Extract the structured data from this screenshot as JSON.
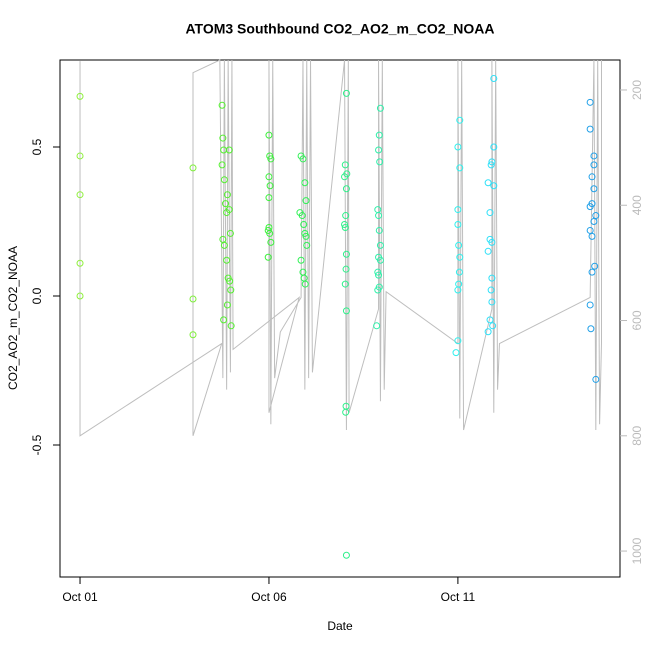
{
  "chart_data": {
    "type": "scatter",
    "title": "ATOM3 Southbound CO2_AO2_m_CO2_NOAA",
    "xlabel": "Date",
    "ylabel": "CO2_AO2_m_CO2_NOAA",
    "xlim": [
      -0.53,
      14.29
    ],
    "xticks": [
      {
        "value": 0,
        "label": "Oct 01"
      },
      {
        "value": 5,
        "label": "Oct 06"
      },
      {
        "value": 10,
        "label": "Oct 11"
      }
    ],
    "ylim": [
      -0.943,
      0.792
    ],
    "yticks": [
      -0.5,
      {
        "value": 0,
        "label": "0.0"
      },
      0.5
    ],
    "y2lim": [
      1045,
      148
    ],
    "y2ticks": [
      200,
      400,
      600,
      800,
      1000
    ],
    "series": [
      {
        "color": "#8ff03c",
        "x": [
          0,
          0,
          0,
          0,
          0
        ],
        "values": [
          0.67,
          0.47,
          0.34,
          0.11,
          0.0
        ]
      },
      {
        "color": "#7ff03a",
        "x": [
          2.99,
          2.99,
          2.99
        ],
        "values": [
          0.43,
          -0.01,
          -0.13
        ]
      },
      {
        "color": "#55f030",
        "x": [
          3.76,
          3.78,
          3.8,
          3.76,
          3.82,
          3.9,
          3.85,
          3.95,
          3.98,
          3.78,
          3.82,
          3.88,
          3.92,
          3.96,
          3.99,
          3.9,
          3.8,
          4.0,
          3.95,
          3.88
        ],
        "values": [
          0.64,
          0.53,
          0.49,
          0.44,
          0.39,
          0.34,
          0.31,
          0.29,
          0.21,
          0.19,
          0.17,
          0.12,
          0.06,
          0.05,
          0.02,
          -0.03,
          -0.08,
          -0.1,
          0.49,
          0.28
        ]
      },
      {
        "color": "#3cf03c",
        "x": [
          5.0,
          5.02,
          5.05,
          5.0,
          5.03,
          5.0,
          5.0,
          4.98,
          5.02,
          5.05,
          4.98
        ],
        "values": [
          0.54,
          0.47,
          0.46,
          0.4,
          0.37,
          0.33,
          0.23,
          0.22,
          0.21,
          0.18,
          0.13
        ]
      },
      {
        "color": "#30f055",
        "x": [
          5.85,
          5.9,
          5.95,
          5.98,
          5.82,
          5.88,
          5.92,
          5.95,
          5.98,
          6.0,
          5.85,
          5.9,
          5.93,
          5.96
        ],
        "values": [
          0.47,
          0.46,
          0.38,
          0.32,
          0.28,
          0.27,
          0.24,
          0.21,
          0.2,
          0.17,
          0.12,
          0.08,
          0.06,
          0.04
        ]
      },
      {
        "color": "#2ff08a",
        "x": [
          7.05,
          7.02,
          7.06,
          7.0,
          7.05,
          7.03,
          7.0,
          7.02,
          7.05,
          7.04,
          7.02,
          7.05,
          7.04,
          7.03,
          7.05
        ],
        "values": [
          0.68,
          0.44,
          0.41,
          0.4,
          0.36,
          0.27,
          0.24,
          0.23,
          0.14,
          0.09,
          0.04,
          -0.05,
          -0.37,
          -0.39,
          -0.87
        ]
      },
      {
        "color": "#30f0aa",
        "x": [
          7.95,
          7.92,
          7.9,
          7.93,
          7.88,
          7.9,
          7.92,
          7.95,
          7.9,
          7.95,
          7.88,
          7.9,
          7.92,
          7.88,
          7.85
        ],
        "values": [
          0.63,
          0.54,
          0.49,
          0.45,
          0.29,
          0.27,
          0.22,
          0.17,
          0.13,
          0.12,
          0.08,
          0.07,
          0.03,
          0.02,
          -0.1
        ]
      },
      {
        "color": "#30f0ee",
        "x": [
          10.05,
          10.0,
          10.05,
          10.0,
          10.0,
          10.02,
          10.05,
          10.04,
          10.02,
          10.0,
          10.0,
          9.95
        ],
        "values": [
          0.59,
          0.5,
          0.43,
          0.29,
          0.24,
          0.17,
          0.13,
          0.08,
          0.04,
          0.02,
          -0.15,
          -0.19
        ]
      },
      {
        "color": "#30e0f8",
        "x": [
          10.95,
          10.95,
          10.9,
          10.88,
          10.8,
          10.95,
          10.85,
          10.85,
          10.9,
          10.8,
          10.9,
          10.88,
          10.9,
          10.85,
          10.92,
          10.8
        ],
        "values": [
          0.73,
          0.5,
          0.45,
          0.44,
          0.38,
          0.37,
          0.28,
          0.19,
          0.18,
          0.15,
          0.06,
          0.02,
          -0.02,
          -0.08,
          -0.1,
          -0.12
        ]
      },
      {
        "color": "#20a0e8",
        "x": [
          13.5,
          13.5,
          13.6,
          13.6,
          13.55,
          13.6,
          13.55,
          13.5,
          13.65,
          13.6,
          13.5,
          13.55,
          13.62,
          13.55,
          13.5,
          13.52,
          13.65
        ],
        "values": [
          0.65,
          0.56,
          0.47,
          0.44,
          0.4,
          0.36,
          0.31,
          0.3,
          0.27,
          0.25,
          0.22,
          0.2,
          0.1,
          0.08,
          -0.03,
          -0.11,
          -0.28
        ]
      },
      {
        "type": "line",
        "axis": "y2",
        "color": "#bebebe",
        "x": [
          0,
          0,
          3.75,
          2.99,
          2.99,
          3.7,
          3.78,
          3.82,
          3.88,
          3.92,
          3.98,
          4.02,
          4.05,
          5.8,
          5.0,
          5.0,
          5.05,
          5.1,
          5.15,
          5.3,
          5.85,
          5.9,
          5.95,
          6.0,
          6.05,
          6.1,
          6.15,
          7.0,
          7.05,
          7.1,
          7.12,
          7.9,
          7.9,
          7.95,
          8.0,
          8.05,
          8.1,
          10.0,
          10.0,
          10.05,
          10.1,
          10.15,
          10.9,
          10.9,
          10.95,
          11.0,
          11.05,
          11.1,
          13.5,
          13.6,
          13.65,
          13.7,
          13.75,
          13.8,
          13.8
        ],
        "values": [
          150,
          800,
          640,
          800,
          170,
          148,
          700,
          148,
          720,
          148,
          690,
          148,
          650,
          560,
          760,
          148,
          780,
          148,
          700,
          620,
          560,
          148,
          720,
          148,
          700,
          148,
          690,
          148,
          790,
          148,
          760,
          580,
          148,
          740,
          148,
          720,
          550,
          640,
          148,
          770,
          148,
          790,
          580,
          148,
          760,
          148,
          720,
          640,
          560,
          148,
          790,
          148,
          780,
          640,
          148
        ]
      }
    ]
  }
}
